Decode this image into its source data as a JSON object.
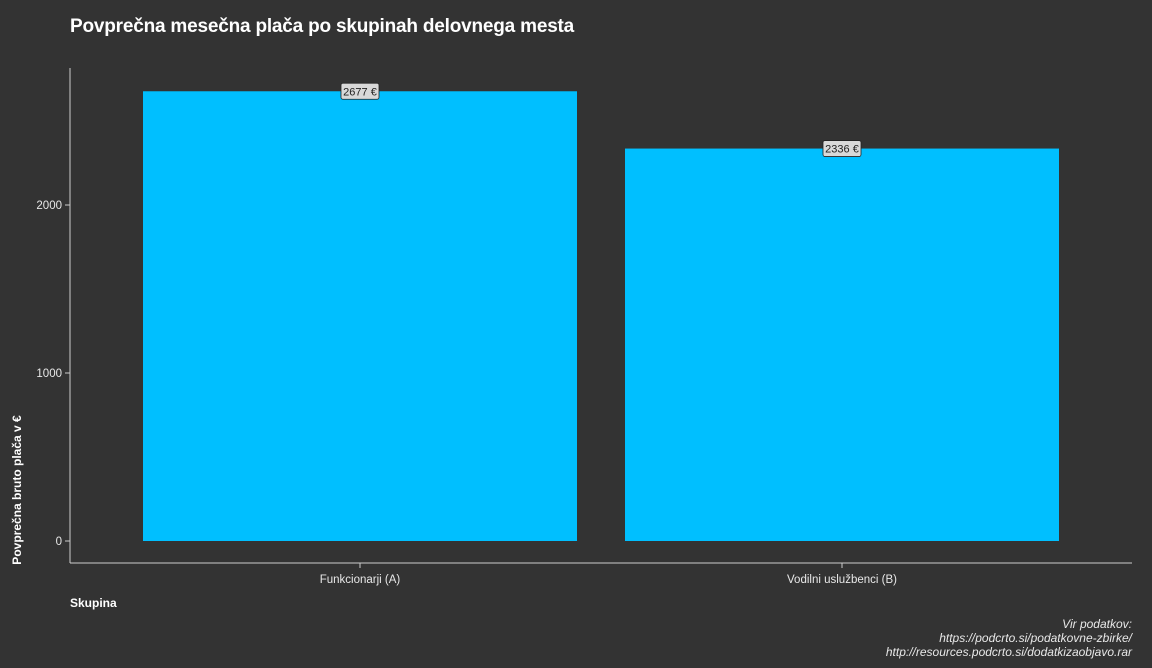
{
  "chart_data": {
    "type": "bar",
    "title": "Povprečna mesečna plača po skupinah delovnega mesta",
    "xlabel": "Skupina",
    "ylabel": "Povprečna bruto plača v €",
    "categories": [
      "Funkcionarji (A)",
      "Vodilni uslužbenci (B)"
    ],
    "values": [
      2677,
      2336
    ],
    "data_labels": [
      "2677 €",
      "2336 €"
    ],
    "yticks": [
      0,
      1000,
      2000
    ],
    "ylim": [
      0,
      2700
    ],
    "bar_color": "#00BFFF",
    "background_color": "#333333",
    "grid": false,
    "legend": "none"
  },
  "caption": {
    "line1": "Vir podatkov:",
    "line2": "https://podcrto.si/podatkovne-zbirke/",
    "line3": "http://resources.podcrto.si/dodatkizaobjavo.rar"
  }
}
